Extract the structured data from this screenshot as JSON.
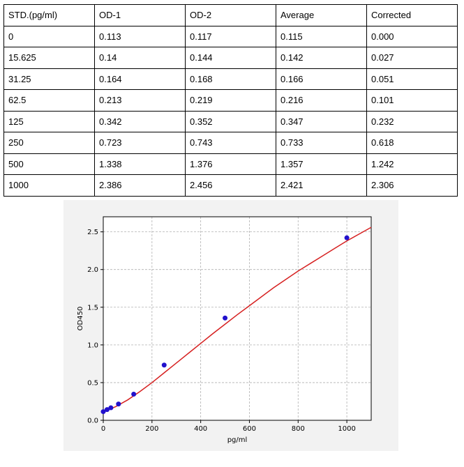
{
  "table": {
    "headers": [
      "STD.(pg/ml)",
      "OD-1",
      "OD-2",
      "Average",
      "Corrected"
    ],
    "rows": [
      [
        "0",
        "0.113",
        "0.117",
        "0.115",
        "0.000"
      ],
      [
        "15.625",
        "0.14",
        "0.144",
        "0.142",
        "0.027"
      ],
      [
        "31.25",
        "0.164",
        "0.168",
        "0.166",
        "0.051"
      ],
      [
        "62.5",
        "0.213",
        "0.219",
        "0.216",
        "0.101"
      ],
      [
        "125",
        "0.342",
        "0.352",
        "0.347",
        "0.232"
      ],
      [
        "250",
        "0.723",
        "0.743",
        "0.733",
        "0.618"
      ],
      [
        "500",
        "1.338",
        "1.376",
        "1.357",
        "1.242"
      ],
      [
        "1000",
        "2.386",
        "2.456",
        "2.421",
        "2.306"
      ]
    ]
  },
  "chart_data": {
    "type": "scatter",
    "title": "",
    "xlabel": "pg/ml",
    "ylabel": "OD450",
    "xlim": [
      0,
      1100
    ],
    "ylim": [
      0,
      2.7
    ],
    "xticks": [
      0,
      200,
      400,
      600,
      800,
      1000
    ],
    "xtick_labels": [
      "0",
      "200",
      "400",
      "600",
      "800",
      "1000"
    ],
    "yticks": [
      0,
      0.5,
      1.0,
      1.5,
      2.0,
      2.5
    ],
    "ytick_labels": [
      "0.0",
      "0.5",
      "1.0",
      "1.5",
      "2.0",
      "2.5"
    ],
    "grid": true,
    "points": {
      "x": [
        0,
        15.625,
        31.25,
        62.5,
        125,
        250,
        500,
        1000
      ],
      "y": [
        0.115,
        0.142,
        0.166,
        0.216,
        0.347,
        0.733,
        1.357,
        2.421
      ]
    },
    "fit_curve": {
      "x": [
        0,
        50,
        100,
        150,
        200,
        250,
        300,
        350,
        400,
        450,
        500,
        550,
        600,
        650,
        700,
        750,
        800,
        850,
        900,
        950,
        1000,
        1050,
        1100
      ],
      "y": [
        0.113,
        0.18,
        0.27,
        0.38,
        0.5,
        0.63,
        0.76,
        0.89,
        1.02,
        1.15,
        1.275,
        1.4,
        1.52,
        1.64,
        1.76,
        1.87,
        1.98,
        2.08,
        2.18,
        2.28,
        2.38,
        2.47,
        2.56
      ]
    },
    "colors": {
      "points": "#2211cc",
      "curve": "#d62020",
      "grid": "#b0b0b0",
      "background": "#f2f2f2"
    }
  }
}
